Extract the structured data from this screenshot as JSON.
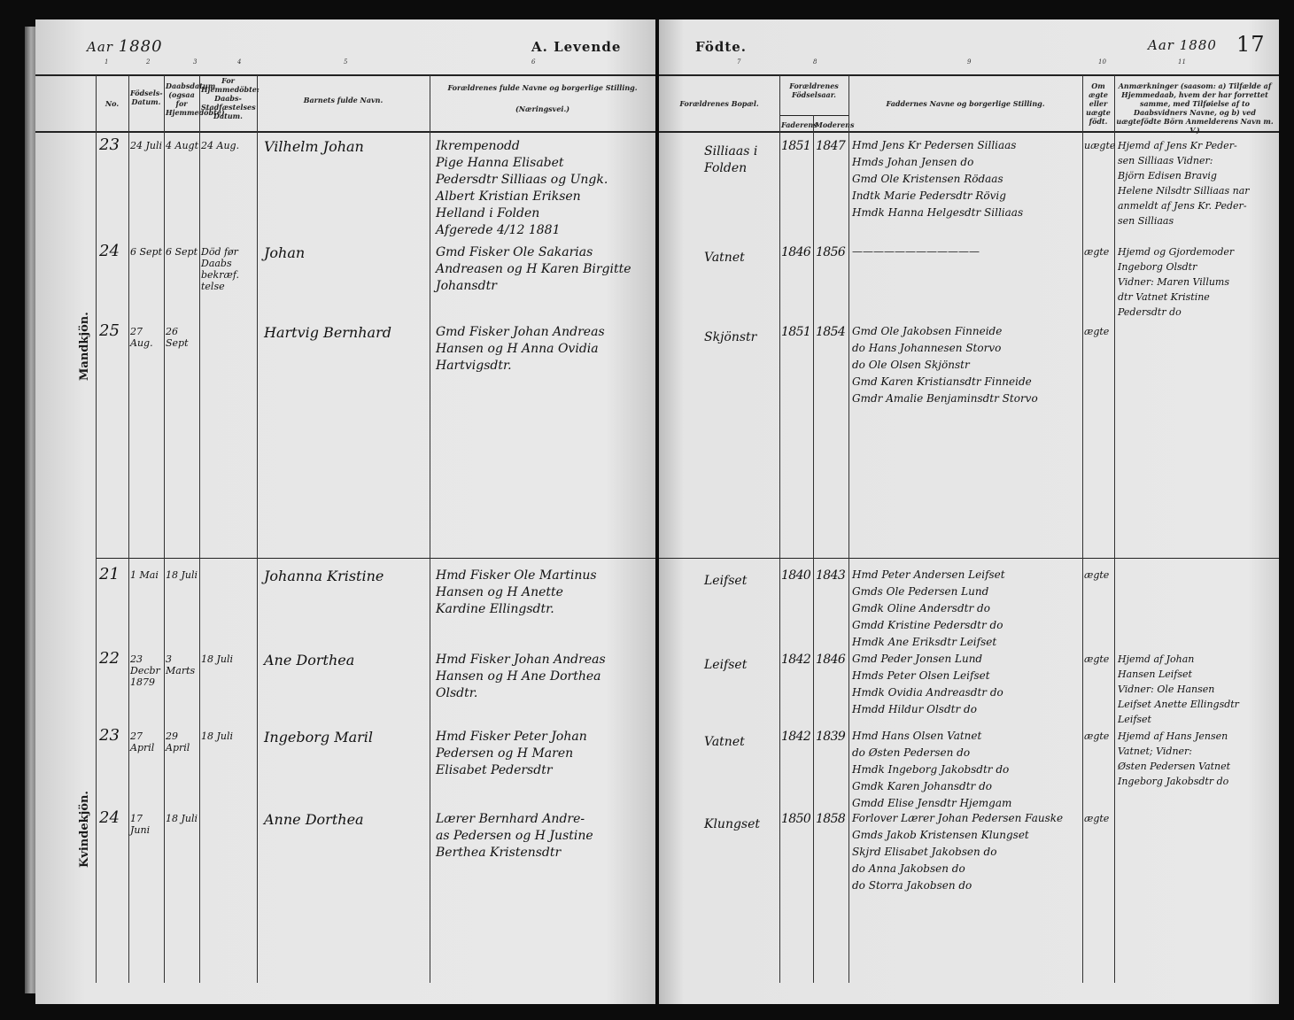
{
  "left_header": {
    "year_label": "Aar",
    "year": "1880",
    "title": "A. Levende"
  },
  "right_header": {
    "title": "Födte.",
    "year_label": "Aar",
    "year": "1880",
    "page_number": "17"
  },
  "column_numbers": [
    "1",
    "2",
    "3",
    "4",
    "5",
    "6",
    "7",
    "8",
    "9",
    "10",
    "11"
  ],
  "columns": {
    "no": "No.",
    "birth_date": "Födsels-Datum.",
    "baptism_date": "Daabsdatum (ogsaa for Hjemmedöbte).",
    "home_baptized": "For Hjemmedöbte: Daabs-Stadfæstelses Datum.",
    "child_name": "Barnets fulde Navn.",
    "parents": "Forældrenes fulde Navne og borgerlige Stilling.",
    "parents_sub": "(Næringsvei.)",
    "residence": "Forældrenes Bopæl.",
    "parents_birth": "Forældrenes Födselsaar.",
    "father": "Faderens",
    "mother": "Moderens",
    "sponsors": "Faddernes Navne og borgerlige Stilling.",
    "legit": "Om ægte eller uægte födt.",
    "remarks": "Anmærkninger (saasom: a) Tilfælde af Hjemmedaab, hvem der har forrettet samme, med Tilføielse af to Daabsvidners Navne, og b) ved uægtefödte Börn Anmelderens Navn m. V.)"
  },
  "sections": {
    "male": "Mandkjön.",
    "female": "Kvindekjön."
  },
  "entries": [
    {
      "no": "23",
      "birth": "24 Juli",
      "baptism": "4 Augt",
      "confirm": "24 Aug.",
      "name": "Vilhelm Johan",
      "parents": [
        "Ikrempenodd",
        "Pige Hanna Elisabet",
        "Pedersdtr Silliaas og Ungk.",
        "Albert Kristian Eriksen",
        "Helland i Folden",
        "Afgerede 4/12 1881"
      ],
      "residence": [
        "Silliaas i",
        "Folden"
      ],
      "father_year": "1851",
      "mother_year": "1847",
      "sponsors": [
        "Hmd Jens Kr Pedersen Silliaas",
        "Hmds Johan Jensen do",
        "Gmd Ole Kristensen Rödaas",
        "Indtk Marie Pedersdtr Rövig",
        "Hmdk Hanna Helgesdtr Silliaas"
      ],
      "legit": "uægte",
      "remarks": [
        "Hjemd af Jens Kr Peder-",
        "sen Silliaas Vidner:",
        "Björn Edisen Bravig",
        "Helene Nilsdtr Silliaas nar",
        "anmeldt af Jens Kr. Peder-",
        "sen Silliaas"
      ]
    },
    {
      "no": "24",
      "birth": "6 Sept",
      "baptism": "6 Sept",
      "confirm": "Död før Daabs bekræf. telse",
      "name": "Johan",
      "parents": [
        "Gmd Fisker Ole Sakarias",
        "Andreasen og H Karen Birgitte",
        "Johansdtr"
      ],
      "residence": [
        "Vatnet"
      ],
      "father_year": "1846",
      "mother_year": "1856",
      "sponsors": [
        "————————————"
      ],
      "legit": "ægte",
      "remarks": [
        "Hjemd og Gjordemoder",
        "Ingeborg Olsdtr",
        "Vidner: Maren Villums",
        "dtr Vatnet Kristine",
        "Pedersdtr do"
      ]
    },
    {
      "no": "25",
      "birth": "27 Aug.",
      "baptism": "26 Sept",
      "confirm": "",
      "name": "Hartvig Bernhard",
      "parents": [
        "Gmd Fisker Johan Andreas",
        "Hansen og H Anna Ovidia",
        "Hartvigsdtr."
      ],
      "residence": [
        "Skjönstr"
      ],
      "father_year": "1851",
      "mother_year": "1854",
      "sponsors": [
        "Gmd Ole Jakobsen Finneide",
        "do Hans Johannesen Storvo",
        "do Ole Olsen Skjönstr",
        "Gmd Karen Kristiansdtr Finneide",
        "Gmdr Amalie Benjaminsdtr Storvo"
      ],
      "legit": "ægte",
      "remarks": []
    },
    {
      "no": "21",
      "birth": "1 Mai",
      "baptism": "18 Juli",
      "confirm": "",
      "name": "Johanna Kristine",
      "parents": [
        "Hmd Fisker Ole Martinus",
        "Hansen og H Anette",
        "Kardine Ellingsdtr."
      ],
      "residence": [
        "Leifset"
      ],
      "father_year": "1840",
      "mother_year": "1843",
      "sponsors": [
        "Hmd Peter Andersen Leifset",
        "Gmds Ole Pedersen Lund",
        "Gmdk Oline Andersdtr do",
        "Gmdd Kristine Pedersdtr do",
        "Hmdk Ane Eriksdtr Leifset"
      ],
      "legit": "ægte",
      "remarks": []
    },
    {
      "no": "22",
      "birth": "23 Decbr 1879",
      "baptism": "3 Marts",
      "confirm": "18 Juli",
      "name": "Ane Dorthea",
      "parents": [
        "Hmd Fisker Johan Andreas",
        "Hansen og H Ane Dorthea",
        "Olsdtr."
      ],
      "residence": [
        "Leifset"
      ],
      "father_year": "1842",
      "mother_year": "1846",
      "sponsors": [
        "Gmd Peder Jonsen Lund",
        "Hmds Peter Olsen Leifset",
        "Hmdk Ovidia Andreasdtr do",
        "Hmdd Hildur Olsdtr do"
      ],
      "legit": "ægte",
      "remarks": [
        "Hjemd af Johan",
        "Hansen Leifset",
        "Vidner: Ole Hansen",
        "Leifset Anette Ellingsdtr",
        "Leifset"
      ]
    },
    {
      "no": "23",
      "birth": "27 April",
      "baptism": "29 April",
      "confirm": "18 Juli",
      "name": "Ingeborg Maril",
      "parents": [
        "Hmd Fisker Peter Johan",
        "Pedersen og H Maren",
        "Elisabet Pedersdtr"
      ],
      "residence": [
        "Vatnet"
      ],
      "father_year": "1842",
      "mother_year": "1839",
      "sponsors": [
        "Hmd Hans Olsen Vatnet",
        "do Østen Pedersen do",
        "Hmdk Ingeborg Jakobsdtr do",
        "Gmdk Karen Johansdtr do",
        "Gmdd Elise Jensdtr Hjemgam"
      ],
      "legit": "ægte",
      "remarks": [
        "Hjemd af Hans Jensen",
        "Vatnet; Vidner:",
        "Østen Pedersen Vatnet",
        "Ingeborg Jakobsdtr do"
      ]
    },
    {
      "no": "24",
      "birth": "17 Juni",
      "baptism": "18 Juli",
      "confirm": "",
      "name": "Anne Dorthea",
      "parents": [
        "Lærer Bernhard Andre-",
        "as Pedersen og H Justine",
        "Berthea Kristensdtr"
      ],
      "residence": [
        "Klungset"
      ],
      "father_year": "1850",
      "mother_year": "1858",
      "sponsors": [
        "Forlover Lærer Johan Pedersen Fauske",
        "Gmds Jakob Kristensen Klungset",
        "Skjrd Elisabet Jakobsen do",
        "do Anna Jakobsen do",
        "do Storra Jakobsen do"
      ],
      "legit": "ægte",
      "remarks": []
    }
  ]
}
